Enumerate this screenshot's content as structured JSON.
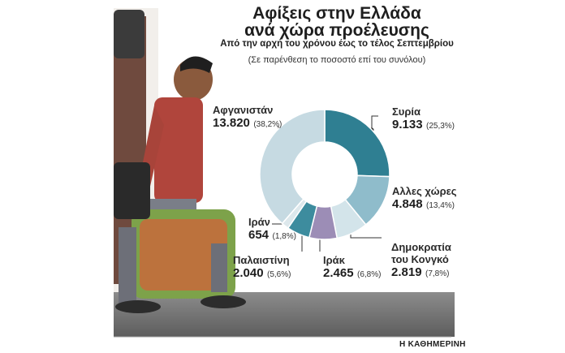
{
  "chart_data": {
    "type": "donut",
    "title": [
      "Αφίξεις στην Ελλάδα",
      "ανά χώρα προέλευσης"
    ],
    "subtitle": "Από την αρχή του χρόνου έως το τέλος Σεπτεμβρίου",
    "note": "(Σε παρένθεση το ποσοστό επί του συνόλου)",
    "categories": [
      "Συρία",
      "Αλλες χώρες",
      "Δημοκρατία του Κονγκό",
      "Ιράκ",
      "Παλαιστίνη",
      "Ιράν",
      "Αφγανιστάν"
    ],
    "values": [
      9133,
      4848,
      2819,
      2465,
      2040,
      654,
      13820
    ],
    "value_labels": [
      "9.133",
      "4.848",
      "2.819",
      "2.465",
      "2.040",
      "654",
      "13.820"
    ],
    "percentages": [
      25.3,
      13.4,
      7.8,
      6.8,
      5.6,
      1.8,
      38.2
    ],
    "percentage_labels": [
      "(25,3%)",
      "(13,4%)",
      "(7,8%)",
      "(6,8%)",
      "(5,6%)",
      "(1,8%)",
      "(38,2%)"
    ],
    "colors": [
      "#2f7f92",
      "#8fbccb",
      "#d3e4ea",
      "#9c8db6",
      "#3d8c9e",
      "#dde8ec",
      "#c6dae2"
    ],
    "source": "Η ΚΑΘΗΜΕΡΙΝΗ"
  }
}
